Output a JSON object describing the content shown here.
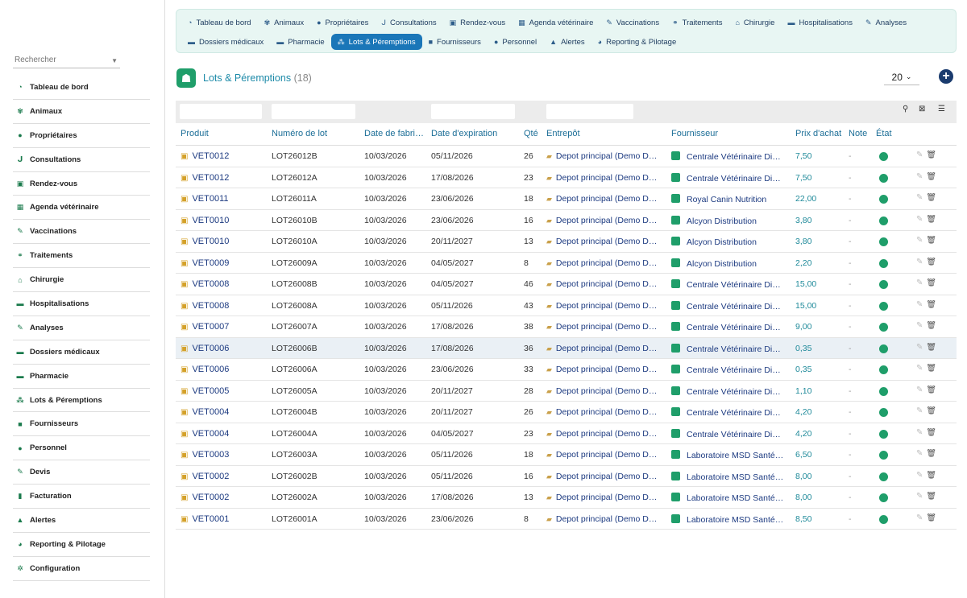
{
  "sidebar": {
    "search_placeholder": "Rechercher",
    "items": [
      {
        "label": "Tableau de bord",
        "icon": "dashboard-icon",
        "glyph": "◔"
      },
      {
        "label": "Animaux",
        "icon": "paw-icon",
        "glyph": "✾"
      },
      {
        "label": "Propriétaires",
        "icon": "user-icon",
        "glyph": "●"
      },
      {
        "label": "Consultations",
        "icon": "stethoscope-icon",
        "glyph": "ᒍ"
      },
      {
        "label": "Rendez-vous",
        "icon": "calendar-check-icon",
        "glyph": "▣"
      },
      {
        "label": "Agenda vétérinaire",
        "icon": "calendar-icon",
        "glyph": "▦"
      },
      {
        "label": "Vaccinations",
        "icon": "syringe-icon",
        "glyph": "✎"
      },
      {
        "label": "Traitements",
        "icon": "pills-icon",
        "glyph": "⚭"
      },
      {
        "label": "Chirurgie",
        "icon": "surgery-icon",
        "glyph": "⌂"
      },
      {
        "label": "Hospitalisations",
        "icon": "bed-icon",
        "glyph": "▬"
      },
      {
        "label": "Analyses",
        "icon": "pipette-icon",
        "glyph": "✎"
      },
      {
        "label": "Dossiers médicaux",
        "icon": "folder-icon",
        "glyph": "▬"
      },
      {
        "label": "Pharmacie",
        "icon": "pharmacy-icon",
        "glyph": "▬"
      },
      {
        "label": "Lots & Péremptions",
        "icon": "boxes-icon",
        "glyph": "⁂"
      },
      {
        "label": "Fournisseurs",
        "icon": "truck-icon",
        "glyph": "■"
      },
      {
        "label": "Personnel",
        "icon": "staff-icon",
        "glyph": "●"
      },
      {
        "label": "Devis",
        "icon": "quote-icon",
        "glyph": "✎"
      },
      {
        "label": "Facturation",
        "icon": "invoice-icon",
        "glyph": "▮"
      },
      {
        "label": "Alertes",
        "icon": "warning-icon",
        "glyph": "▲"
      },
      {
        "label": "Reporting & Pilotage",
        "icon": "chart-pie-icon",
        "glyph": "◕"
      },
      {
        "label": "Configuration",
        "icon": "gear-icon",
        "glyph": "✲"
      }
    ]
  },
  "tabs": {
    "row1": [
      {
        "label": "Tableau de bord",
        "icon": "dashboard-icon",
        "glyph": "◔"
      },
      {
        "label": "Animaux",
        "icon": "paw-icon",
        "glyph": "✾"
      },
      {
        "label": "Propriétaires",
        "icon": "user-icon",
        "glyph": "●"
      },
      {
        "label": "Consultations",
        "icon": "stethoscope-icon",
        "glyph": "ᒍ"
      },
      {
        "label": "Rendez-vous",
        "icon": "calendar-check-icon",
        "glyph": "▣"
      },
      {
        "label": "Agenda vétérinaire",
        "icon": "calendar-icon",
        "glyph": "▦"
      },
      {
        "label": "Vaccinations",
        "icon": "syringe-icon",
        "glyph": "✎"
      },
      {
        "label": "Traitements",
        "icon": "pills-icon",
        "glyph": "⚭"
      },
      {
        "label": "Chirurgie",
        "icon": "surgery-icon",
        "glyph": "⌂"
      },
      {
        "label": "Hospitalisations",
        "icon": "bed-icon",
        "glyph": "▬"
      },
      {
        "label": "Analyses",
        "icon": "pipette-icon",
        "glyph": "✎"
      }
    ],
    "row2": [
      {
        "label": "Dossiers médicaux",
        "icon": "folder-icon",
        "glyph": "▬"
      },
      {
        "label": "Pharmacie",
        "icon": "pharmacy-icon",
        "glyph": "▬"
      },
      {
        "label": "Lots & Péremptions",
        "icon": "boxes-icon",
        "glyph": "⁂",
        "active": true
      },
      {
        "label": "Fournisseurs",
        "icon": "truck-icon",
        "glyph": "■"
      },
      {
        "label": "Personnel",
        "icon": "staff-icon",
        "glyph": "●"
      },
      {
        "label": "Alertes",
        "icon": "warning-icon",
        "glyph": "▲"
      },
      {
        "label": "Reporting & Pilotage",
        "icon": "chart-pie-icon",
        "glyph": "◕"
      }
    ]
  },
  "header": {
    "title": "Lots & Péremptions",
    "count": "(18)",
    "page_size": "20",
    "icon": "lots-icon"
  },
  "table": {
    "columns": [
      "Produit",
      "Numéro de lot",
      "Date de fabri…",
      "Date d'expiration",
      "Qté",
      "Entrepôt",
      "Fournisseur",
      "Prix d'achat",
      "Note",
      "État"
    ],
    "state_color": "#1f9e6a",
    "rows": [
      {
        "produit": "VET0012",
        "lot": "LOT26012B",
        "fab": "10/03/2026",
        "exp": "05/11/2026",
        "qty": "26",
        "entrepot": "Depot principal (Demo D…",
        "fournisseur": "Centrale Vétérinaire Di…",
        "prix": "7,50",
        "note": "-"
      },
      {
        "produit": "VET0012",
        "lot": "LOT26012A",
        "fab": "10/03/2026",
        "exp": "17/08/2026",
        "qty": "23",
        "entrepot": "Depot principal (Demo D…",
        "fournisseur": "Centrale Vétérinaire Di…",
        "prix": "7,50",
        "note": "-"
      },
      {
        "produit": "VET0011",
        "lot": "LOT26011A",
        "fab": "10/03/2026",
        "exp": "23/06/2026",
        "qty": "18",
        "entrepot": "Depot principal (Demo D…",
        "fournisseur": "Royal Canin Nutrition",
        "prix": "22,00",
        "note": "-"
      },
      {
        "produit": "VET0010",
        "lot": "LOT26010B",
        "fab": "10/03/2026",
        "exp": "23/06/2026",
        "qty": "16",
        "entrepot": "Depot principal (Demo D…",
        "fournisseur": "Alcyon Distribution",
        "prix": "3,80",
        "note": "-"
      },
      {
        "produit": "VET0010",
        "lot": "LOT26010A",
        "fab": "10/03/2026",
        "exp": "20/11/2027",
        "qty": "13",
        "entrepot": "Depot principal (Demo D…",
        "fournisseur": "Alcyon Distribution",
        "prix": "3,80",
        "note": "-"
      },
      {
        "produit": "VET0009",
        "lot": "LOT26009A",
        "fab": "10/03/2026",
        "exp": "04/05/2027",
        "qty": "8",
        "entrepot": "Depot principal (Demo D…",
        "fournisseur": "Alcyon Distribution",
        "prix": "2,20",
        "note": "-"
      },
      {
        "produit": "VET0008",
        "lot": "LOT26008B",
        "fab": "10/03/2026",
        "exp": "04/05/2027",
        "qty": "46",
        "entrepot": "Depot principal (Demo D…",
        "fournisseur": "Centrale Vétérinaire Di…",
        "prix": "15,00",
        "note": "-"
      },
      {
        "produit": "VET0008",
        "lot": "LOT26008A",
        "fab": "10/03/2026",
        "exp": "05/11/2026",
        "qty": "43",
        "entrepot": "Depot principal (Demo D…",
        "fournisseur": "Centrale Vétérinaire Di…",
        "prix": "15,00",
        "note": "-"
      },
      {
        "produit": "VET0007",
        "lot": "LOT26007A",
        "fab": "10/03/2026",
        "exp": "17/08/2026",
        "qty": "38",
        "entrepot": "Depot principal (Demo D…",
        "fournisseur": "Centrale Vétérinaire Di…",
        "prix": "9,00",
        "note": "-"
      },
      {
        "produit": "VET0006",
        "lot": "LOT26006B",
        "fab": "10/03/2026",
        "exp": "17/08/2026",
        "qty": "36",
        "entrepot": "Depot principal (Demo D…",
        "fournisseur": "Centrale Vétérinaire Di…",
        "prix": "0,35",
        "note": "-",
        "highlight": true
      },
      {
        "produit": "VET0006",
        "lot": "LOT26006A",
        "fab": "10/03/2026",
        "exp": "23/06/2026",
        "qty": "33",
        "entrepot": "Depot principal (Demo D…",
        "fournisseur": "Centrale Vétérinaire Di…",
        "prix": "0,35",
        "note": "-"
      },
      {
        "produit": "VET0005",
        "lot": "LOT26005A",
        "fab": "10/03/2026",
        "exp": "20/11/2027",
        "qty": "28",
        "entrepot": "Depot principal (Demo D…",
        "fournisseur": "Centrale Vétérinaire Di…",
        "prix": "1,10",
        "note": "-"
      },
      {
        "produit": "VET0004",
        "lot": "LOT26004B",
        "fab": "10/03/2026",
        "exp": "20/11/2027",
        "qty": "26",
        "entrepot": "Depot principal (Demo D…",
        "fournisseur": "Centrale Vétérinaire Di…",
        "prix": "4,20",
        "note": "-"
      },
      {
        "produit": "VET0004",
        "lot": "LOT26004A",
        "fab": "10/03/2026",
        "exp": "04/05/2027",
        "qty": "23",
        "entrepot": "Depot principal (Demo D…",
        "fournisseur": "Centrale Vétérinaire Di…",
        "prix": "4,20",
        "note": "-"
      },
      {
        "produit": "VET0003",
        "lot": "LOT26003A",
        "fab": "10/03/2026",
        "exp": "05/11/2026",
        "qty": "18",
        "entrepot": "Depot principal (Demo D…",
        "fournisseur": "Laboratoire MSD Santé…",
        "prix": "6,50",
        "note": "-"
      },
      {
        "produit": "VET0002",
        "lot": "LOT26002B",
        "fab": "10/03/2026",
        "exp": "05/11/2026",
        "qty": "16",
        "entrepot": "Depot principal (Demo D…",
        "fournisseur": "Laboratoire MSD Santé…",
        "prix": "8,00",
        "note": "-"
      },
      {
        "produit": "VET0002",
        "lot": "LOT26002A",
        "fab": "10/03/2026",
        "exp": "17/08/2026",
        "qty": "13",
        "entrepot": "Depot principal (Demo D…",
        "fournisseur": "Laboratoire MSD Santé…",
        "prix": "8,00",
        "note": "-"
      },
      {
        "produit": "VET0001",
        "lot": "LOT26001A",
        "fab": "10/03/2026",
        "exp": "23/06/2026",
        "qty": "8",
        "entrepot": "Depot principal (Demo D…",
        "fournisseur": "Laboratoire MSD Santé…",
        "prix": "8,50",
        "note": "-"
      }
    ]
  }
}
